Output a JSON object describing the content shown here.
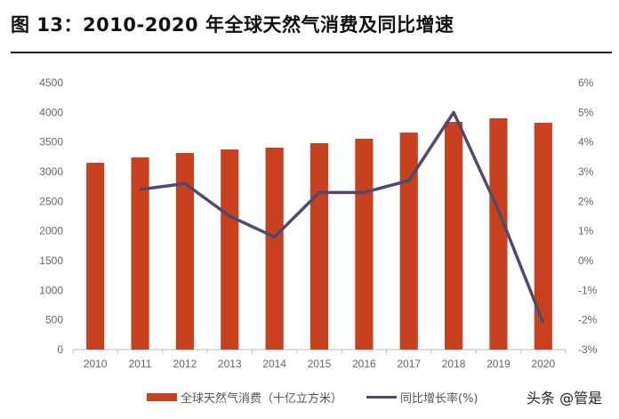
{
  "title": "图 13：2010-2020 年全球天然气消费及同比增速",
  "watermark": "头条 @管是",
  "chart_data": {
    "type": "bar+line",
    "categories": [
      "2010",
      "2011",
      "2012",
      "2013",
      "2014",
      "2015",
      "2016",
      "2017",
      "2018",
      "2019",
      "2020"
    ],
    "series": [
      {
        "name": "全球天然气消费（十亿立方米）",
        "type": "bar",
        "axis": "left",
        "color": "#C8401E",
        "values": [
          3150,
          3240,
          3315,
          3375,
          3405,
          3480,
          3555,
          3660,
          3840,
          3900,
          3825
        ]
      },
      {
        "name": "同比增长率(%)",
        "type": "line",
        "axis": "right",
        "color": "#4F4A6E",
        "values": [
          null,
          2.4,
          2.6,
          1.5,
          0.8,
          2.3,
          2.3,
          2.7,
          5.0,
          1.7,
          -2.1
        ]
      }
    ],
    "left_axis": {
      "ylim": [
        0,
        4500
      ],
      "ticks": [
        "0",
        "500",
        "1000",
        "1500",
        "2000",
        "2500",
        "3000",
        "3500",
        "4000",
        "4500"
      ]
    },
    "right_axis": {
      "ylim": [
        -3,
        6
      ],
      "ticks": [
        "-3%",
        "-2%",
        "-1%",
        "0%",
        "1%",
        "2%",
        "3%",
        "4%",
        "5%",
        "6%"
      ]
    },
    "grid": false,
    "legend": "bottom"
  }
}
